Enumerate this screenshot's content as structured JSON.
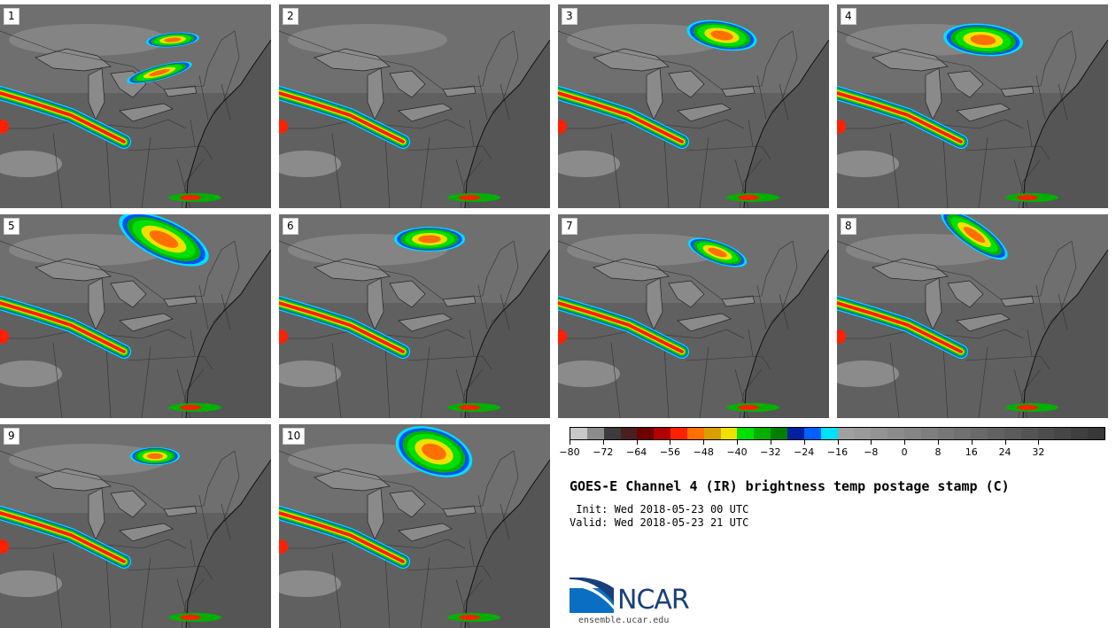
{
  "panels": [
    {
      "label": "1",
      "variant": 1
    },
    {
      "label": "2",
      "variant": 2
    },
    {
      "label": "3",
      "variant": 3
    },
    {
      "label": "4",
      "variant": 4
    },
    {
      "label": "5",
      "variant": 5
    },
    {
      "label": "6",
      "variant": 6
    },
    {
      "label": "7",
      "variant": 7
    },
    {
      "label": "8",
      "variant": 8
    },
    {
      "label": "9",
      "variant": 9
    },
    {
      "label": "10",
      "variant": 10
    }
  ],
  "colorbar": {
    "colors": [
      "#c8c8c8",
      "#8c8c8c",
      "#3c3c3c",
      "#4a1f1f",
      "#6e0000",
      "#b00000",
      "#ff2000",
      "#ff7000",
      "#d9a000",
      "#f0e000",
      "#00e000",
      "#00b000",
      "#008000",
      "#0020a0",
      "#0060ff",
      "#00e0ff",
      "#a0a0a0",
      "#9a9a9a",
      "#939393",
      "#8c8c8c",
      "#858585",
      "#7e7e7e",
      "#777777",
      "#707070",
      "#696969",
      "#626262",
      "#5b5b5b",
      "#545454",
      "#4d4d4d",
      "#464646",
      "#3f3f3f",
      "#383838"
    ],
    "tick_labels": [
      "−80",
      "−72",
      "−64",
      "−56",
      "−48",
      "−40",
      "−32",
      "−24",
      "−16",
      "−8",
      "0",
      "8",
      "16",
      "24",
      "32"
    ]
  },
  "title": "GOES-E Channel 4 (IR) brightness temp postage stamp (C)",
  "init": " Init: Wed 2018-05-23 00 UTC",
  "valid": "Valid: Wed 2018-05-23 21 UTC",
  "logo_text": "NCAR",
  "url": "ensemble.ucar.edu"
}
